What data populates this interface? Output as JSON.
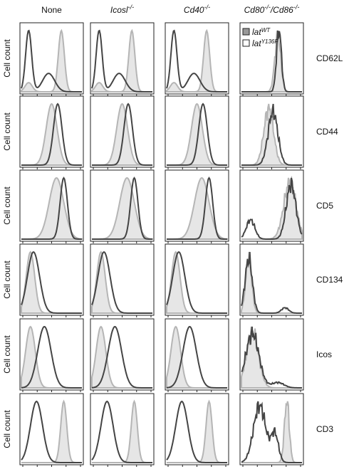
{
  "columns": [
    {
      "parts": [
        "None"
      ],
      "italic": false
    },
    {
      "parts": [
        "Icosl",
        "-/-"
      ],
      "italic": true
    },
    {
      "parts": [
        "Cd40",
        "-/-"
      ],
      "italic": true
    },
    {
      "parts": [
        "Cd80",
        "-/-",
        "/Cd86",
        "-/-"
      ],
      "italic": true
    }
  ],
  "rows": [
    {
      "marker": "CD62L",
      "y_label": "Cell count"
    },
    {
      "marker": "CD44",
      "y_label": "Cell count"
    },
    {
      "marker": "CD5",
      "y_label": "Cell count"
    },
    {
      "marker": "CD134",
      "y_label": "Cell count"
    },
    {
      "marker": "Icos",
      "y_label": "Cell count"
    },
    {
      "marker": "CD3",
      "y_label": "Cell count"
    }
  ],
  "legend": [
    {
      "parts": [
        "lat",
        "WT"
      ]
    },
    {
      "parts": [
        "lat",
        "Y136F"
      ]
    }
  ]
}
